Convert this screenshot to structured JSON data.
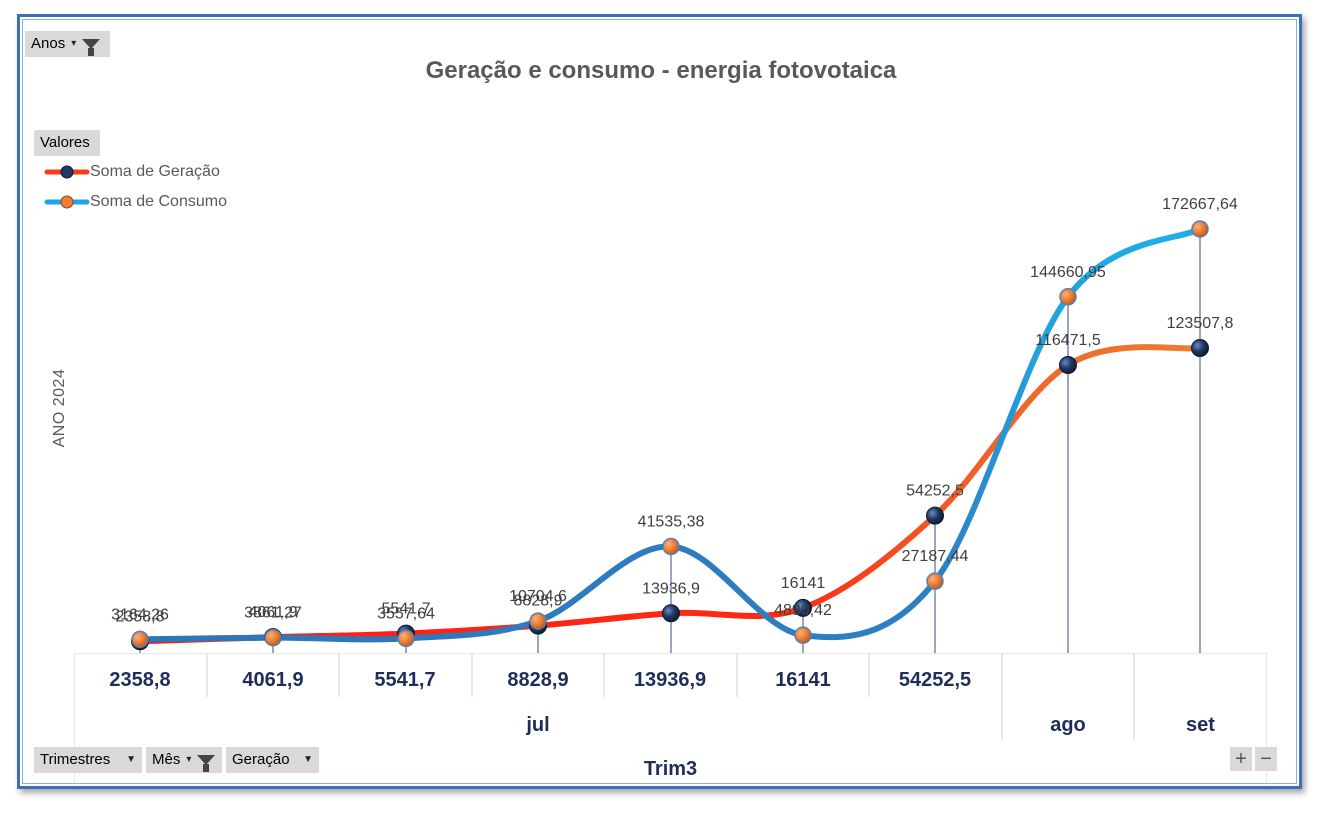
{
  "filters": {
    "top": {
      "label": "Anos"
    },
    "bottom": [
      {
        "label": "Trimestres",
        "icon": "caret-icon"
      },
      {
        "label": "Mês",
        "icon": "filter-icon"
      },
      {
        "label": "Geração",
        "icon": "caret-icon"
      }
    ]
  },
  "legend": {
    "title": "Valores",
    "items": [
      {
        "label": "Soma de Geração"
      },
      {
        "label": "Soma de Consumo"
      }
    ]
  },
  "axis": {
    "y_title": "ANO 2024",
    "group_label": "Trim3",
    "months": [
      "jul",
      "ago",
      "set"
    ]
  },
  "zoom_buttons": {
    "plus": "+",
    "minus": "−"
  },
  "chart_data": {
    "type": "line",
    "title": "Geração e consumo - energia fotovotaica",
    "ylabel": "ANO 2024",
    "xlabel": "Trim3",
    "categories": [
      "2358,8",
      "4061,9",
      "5541,7",
      "8828,9",
      "13936,9",
      "16141",
      "54252,5",
      "",
      ""
    ],
    "category_groups": [
      {
        "label": "jul",
        "span": 7
      },
      {
        "label": "ago",
        "span": 1
      },
      {
        "label": "set",
        "span": 1
      }
    ],
    "ylim": [
      0,
      180000
    ],
    "grid": false,
    "legend": "top-left",
    "series": [
      {
        "name": "Soma de Geração",
        "values": [
          2358.8,
          4061.9,
          5541.7,
          8828.9,
          13936.9,
          16141,
          54252.5,
          116471.5,
          123507.8
        ],
        "labels": [
          "2358,8",
          "4061,9",
          "5541,7",
          "8828,9",
          "13936,9",
          "16141",
          "54252,5",
          "116471,5",
          "123507,8"
        ]
      },
      {
        "name": "Soma de Consumo",
        "values": [
          3164.26,
          3861.27,
          3557.64,
          10704.6,
          41535.38,
          4890.42,
          27187.44,
          144660.95,
          172667.64
        ],
        "labels": [
          "3164,26",
          "3861,27",
          "3557,64",
          "10704,6",
          "41535,38",
          "4890,42",
          "27187,44",
          "144660,95",
          "172667,64"
        ]
      }
    ],
    "colors": {
      "geracao_line_start": "#ff1a1a",
      "geracao_line_end": "#ed7d31",
      "consumo_line_start": "#2e75b6",
      "consumo_line_end": "#1fb0e8",
      "geracao_marker": "#1f3864",
      "consumo_marker": "#ed7d31",
      "category_text": "#1f2d5a"
    }
  }
}
